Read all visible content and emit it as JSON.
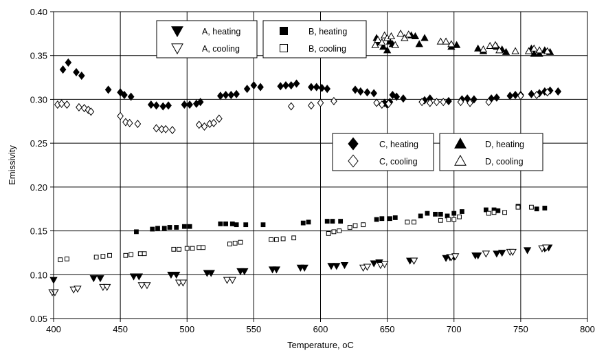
{
  "chart_data": {
    "type": "scatter",
    "xlabel": "Temperature, oC",
    "ylabel": "Emissivity",
    "xlim": [
      400,
      800
    ],
    "ylim": [
      0.05,
      0.4
    ],
    "xticks": [
      400,
      450,
      500,
      550,
      600,
      650,
      700,
      750,
      800
    ],
    "yticks": [
      0.05,
      0.1,
      0.15,
      0.2,
      0.25,
      0.3,
      0.35,
      0.4
    ],
    "xtick_labels": [
      "400",
      "450",
      "500",
      "550",
      "600",
      "650",
      "700",
      "750",
      "800"
    ],
    "ytick_labels": [
      "0.05",
      "0.10",
      "0.15",
      "0.20",
      "0.25",
      "0.30",
      "0.35",
      "0.40"
    ],
    "grid": true,
    "legends": [
      {
        "placement": "top-center",
        "entries": [
          {
            "series": "A, heating",
            "label": "A, heating"
          },
          {
            "series": "B, heating",
            "label": "B, heating"
          },
          {
            "series": "A, cooling",
            "label": "A, cooling"
          },
          {
            "series": "B, cooling",
            "label": "B, cooling"
          }
        ]
      },
      {
        "placement": "center-right",
        "entries": [
          {
            "series": "C, heating",
            "label": "C, heating"
          },
          {
            "series": "D, heating",
            "label": "D, heating"
          },
          {
            "series": "C, cooling",
            "label": "C, cooling"
          },
          {
            "series": "D, cooling",
            "label": "D, cooling"
          }
        ]
      }
    ],
    "series": [
      {
        "name": "A, heating",
        "marker": "triangle-down",
        "fill": "filled",
        "color": "#000000",
        "points": [
          [
            400,
            0.094
          ],
          [
            430,
            0.096
          ],
          [
            435,
            0.096
          ],
          [
            460,
            0.098
          ],
          [
            464,
            0.098
          ],
          [
            488,
            0.1
          ],
          [
            492,
            0.1
          ],
          [
            515,
            0.102
          ],
          [
            518,
            0.102
          ],
          [
            540,
            0.104
          ],
          [
            543,
            0.104
          ],
          [
            564,
            0.106
          ],
          [
            567,
            0.106
          ],
          [
            585,
            0.108
          ],
          [
            588,
            0.108
          ],
          [
            608,
            0.11
          ],
          [
            612,
            0.11
          ],
          [
            618,
            0.111
          ],
          [
            640,
            0.113
          ],
          [
            644,
            0.114
          ],
          [
            667,
            0.116
          ],
          [
            670,
            0.116
          ],
          [
            694,
            0.119
          ],
          [
            697,
            0.12
          ],
          [
            700,
            0.12
          ],
          [
            716,
            0.122
          ],
          [
            718,
            0.122
          ],
          [
            732,
            0.124
          ],
          [
            736,
            0.125
          ],
          [
            755,
            0.128
          ],
          [
            768,
            0.13
          ],
          [
            771,
            0.131
          ]
        ]
      },
      {
        "name": "A, cooling",
        "marker": "triangle-down",
        "fill": "open",
        "color": "#000000",
        "points": [
          [
            399,
            0.08
          ],
          [
            401,
            0.08
          ],
          [
            415,
            0.083
          ],
          [
            418,
            0.084
          ],
          [
            437,
            0.086
          ],
          [
            440,
            0.086
          ],
          [
            466,
            0.088
          ],
          [
            470,
            0.088
          ],
          [
            494,
            0.091
          ],
          [
            497,
            0.091
          ],
          [
            530,
            0.094
          ],
          [
            534,
            0.094
          ],
          [
            632,
            0.108
          ],
          [
            635,
            0.109
          ],
          [
            645,
            0.111
          ],
          [
            648,
            0.112
          ],
          [
            670,
            0.116
          ],
          [
            698,
            0.12
          ],
          [
            701,
            0.121
          ],
          [
            724,
            0.124
          ],
          [
            742,
            0.126
          ],
          [
            744,
            0.126
          ],
          [
            766,
            0.13
          ],
          [
            769,
            0.131
          ]
        ]
      },
      {
        "name": "B, heating",
        "marker": "square",
        "fill": "filled",
        "color": "#000000",
        "points": [
          [
            462,
            0.149
          ],
          [
            474,
            0.152
          ],
          [
            478,
            0.153
          ],
          [
            483,
            0.153
          ],
          [
            487,
            0.154
          ],
          [
            492,
            0.154
          ],
          [
            498,
            0.155
          ],
          [
            502,
            0.155
          ],
          [
            525,
            0.158
          ],
          [
            529,
            0.158
          ],
          [
            534,
            0.158
          ],
          [
            537,
            0.157
          ],
          [
            544,
            0.157
          ],
          [
            557,
            0.157
          ],
          [
            587,
            0.159
          ],
          [
            591,
            0.16
          ],
          [
            605,
            0.161
          ],
          [
            609,
            0.161
          ],
          [
            615,
            0.161
          ],
          [
            642,
            0.163
          ],
          [
            646,
            0.164
          ],
          [
            652,
            0.164
          ],
          [
            656,
            0.165
          ],
          [
            675,
            0.167
          ],
          [
            680,
            0.17
          ],
          [
            686,
            0.169
          ],
          [
            690,
            0.169
          ],
          [
            695,
            0.167
          ],
          [
            700,
            0.17
          ],
          [
            706,
            0.172
          ],
          [
            724,
            0.174
          ],
          [
            730,
            0.174
          ],
          [
            733,
            0.173
          ],
          [
            748,
            0.178
          ],
          [
            762,
            0.175
          ],
          [
            768,
            0.176
          ]
        ]
      },
      {
        "name": "B, cooling",
        "marker": "square",
        "fill": "open",
        "color": "#000000",
        "points": [
          [
            405,
            0.117
          ],
          [
            410,
            0.118
          ],
          [
            432,
            0.12
          ],
          [
            437,
            0.121
          ],
          [
            442,
            0.122
          ],
          [
            454,
            0.122
          ],
          [
            458,
            0.123
          ],
          [
            465,
            0.124
          ],
          [
            468,
            0.124
          ],
          [
            490,
            0.129
          ],
          [
            494,
            0.129
          ],
          [
            500,
            0.13
          ],
          [
            504,
            0.13
          ],
          [
            509,
            0.131
          ],
          [
            512,
            0.131
          ],
          [
            532,
            0.135
          ],
          [
            536,
            0.136
          ],
          [
            540,
            0.137
          ],
          [
            563,
            0.14
          ],
          [
            567,
            0.14
          ],
          [
            572,
            0.141
          ],
          [
            580,
            0.142
          ],
          [
            606,
            0.147
          ],
          [
            610,
            0.149
          ],
          [
            614,
            0.15
          ],
          [
            622,
            0.154
          ],
          [
            626,
            0.156
          ],
          [
            632,
            0.157
          ],
          [
            665,
            0.16
          ],
          [
            670,
            0.16
          ],
          [
            690,
            0.162
          ],
          [
            696,
            0.163
          ],
          [
            700,
            0.163
          ],
          [
            704,
            0.166
          ],
          [
            726,
            0.17
          ],
          [
            730,
            0.171
          ],
          [
            738,
            0.171
          ],
          [
            748,
            0.177
          ],
          [
            758,
            0.177
          ]
        ]
      },
      {
        "name": "C, heating",
        "marker": "diamond",
        "fill": "filled",
        "color": "#000000",
        "points": [
          [
            407,
            0.334
          ],
          [
            411,
            0.342
          ],
          [
            417,
            0.331
          ],
          [
            421,
            0.327
          ],
          [
            441,
            0.311
          ],
          [
            450,
            0.308
          ],
          [
            453,
            0.305
          ],
          [
            458,
            0.303
          ],
          [
            473,
            0.294
          ],
          [
            477,
            0.293
          ],
          [
            482,
            0.292
          ],
          [
            486,
            0.293
          ],
          [
            498,
            0.294
          ],
          [
            502,
            0.294
          ],
          [
            507,
            0.295
          ],
          [
            510,
            0.297
          ],
          [
            525,
            0.304
          ],
          [
            529,
            0.305
          ],
          [
            533,
            0.305
          ],
          [
            537,
            0.306
          ],
          [
            545,
            0.312
          ],
          [
            550,
            0.316
          ],
          [
            555,
            0.314
          ],
          [
            570,
            0.315
          ],
          [
            574,
            0.316
          ],
          [
            578,
            0.316
          ],
          [
            582,
            0.318
          ],
          [
            593,
            0.314
          ],
          [
            597,
            0.314
          ],
          [
            601,
            0.313
          ],
          [
            605,
            0.312
          ],
          [
            626,
            0.311
          ],
          [
            630,
            0.309
          ],
          [
            635,
            0.308
          ],
          [
            640,
            0.307
          ],
          [
            648,
            0.296
          ],
          [
            650,
            0.294
          ],
          [
            652,
            0.297
          ],
          [
            654,
            0.305
          ],
          [
            657,
            0.303
          ],
          [
            662,
            0.301
          ],
          [
            678,
            0.299
          ],
          [
            682,
            0.301
          ],
          [
            696,
            0.298
          ],
          [
            706,
            0.3
          ],
          [
            710,
            0.301
          ],
          [
            715,
            0.3
          ],
          [
            728,
            0.301
          ],
          [
            732,
            0.302
          ],
          [
            742,
            0.304
          ],
          [
            746,
            0.305
          ],
          [
            750,
            0.305
          ],
          [
            758,
            0.306
          ],
          [
            764,
            0.307
          ],
          [
            768,
            0.309
          ],
          [
            772,
            0.31
          ],
          [
            778,
            0.309
          ]
        ]
      },
      {
        "name": "C, cooling",
        "marker": "diamond",
        "fill": "open",
        "color": "#000000",
        "points": [
          [
            403,
            0.294
          ],
          [
            406,
            0.295
          ],
          [
            410,
            0.294
          ],
          [
            419,
            0.291
          ],
          [
            423,
            0.29
          ],
          [
            426,
            0.288
          ],
          [
            428,
            0.286
          ],
          [
            450,
            0.281
          ],
          [
            454,
            0.274
          ],
          [
            457,
            0.273
          ],
          [
            463,
            0.272
          ],
          [
            477,
            0.267
          ],
          [
            481,
            0.266
          ],
          [
            484,
            0.266
          ],
          [
            489,
            0.265
          ],
          [
            509,
            0.271
          ],
          [
            513,
            0.269
          ],
          [
            517,
            0.272
          ],
          [
            520,
            0.273
          ],
          [
            524,
            0.278
          ],
          [
            578,
            0.292
          ],
          [
            593,
            0.293
          ],
          [
            600,
            0.296
          ],
          [
            610,
            0.298
          ],
          [
            642,
            0.296
          ],
          [
            646,
            0.294
          ],
          [
            651,
            0.295
          ],
          [
            676,
            0.297
          ],
          [
            682,
            0.296
          ],
          [
            687,
            0.297
          ],
          [
            692,
            0.297
          ],
          [
            705,
            0.297
          ],
          [
            712,
            0.296
          ],
          [
            726,
            0.297
          ],
          [
            750,
            0.304
          ],
          [
            762,
            0.305
          ],
          [
            770,
            0.308
          ]
        ]
      },
      {
        "name": "D, heating",
        "marker": "triangle-up",
        "fill": "filled",
        "color": "#000000",
        "points": [
          [
            642,
            0.37
          ],
          [
            644,
            0.365
          ],
          [
            647,
            0.36
          ],
          [
            650,
            0.356
          ],
          [
            652,
            0.366
          ],
          [
            654,
            0.363
          ],
          [
            668,
            0.373
          ],
          [
            671,
            0.372
          ],
          [
            674,
            0.363
          ],
          [
            678,
            0.37
          ],
          [
            698,
            0.36
          ],
          [
            702,
            0.362
          ],
          [
            718,
            0.358
          ],
          [
            722,
            0.355
          ],
          [
            732,
            0.36
          ],
          [
            736,
            0.357
          ],
          [
            739,
            0.354
          ],
          [
            758,
            0.358
          ],
          [
            760,
            0.352
          ],
          [
            764,
            0.352
          ],
          [
            768,
            0.356
          ],
          [
            772,
            0.354
          ]
        ]
      },
      {
        "name": "D, cooling",
        "marker": "triangle-up",
        "fill": "open",
        "color": "#000000",
        "points": [
          [
            641,
            0.362
          ],
          [
            643,
            0.368
          ],
          [
            646,
            0.365
          ],
          [
            648,
            0.373
          ],
          [
            650,
            0.37
          ],
          [
            653,
            0.372
          ],
          [
            656,
            0.362
          ],
          [
            660,
            0.375
          ],
          [
            663,
            0.37
          ],
          [
            666,
            0.374
          ],
          [
            690,
            0.366
          ],
          [
            694,
            0.366
          ],
          [
            698,
            0.363
          ],
          [
            722,
            0.357
          ],
          [
            727,
            0.361
          ],
          [
            731,
            0.362
          ],
          [
            734,
            0.356
          ],
          [
            746,
            0.355
          ],
          [
            756,
            0.355
          ],
          [
            760,
            0.358
          ],
          [
            764,
            0.356
          ],
          [
            770,
            0.355
          ]
        ]
      }
    ]
  }
}
